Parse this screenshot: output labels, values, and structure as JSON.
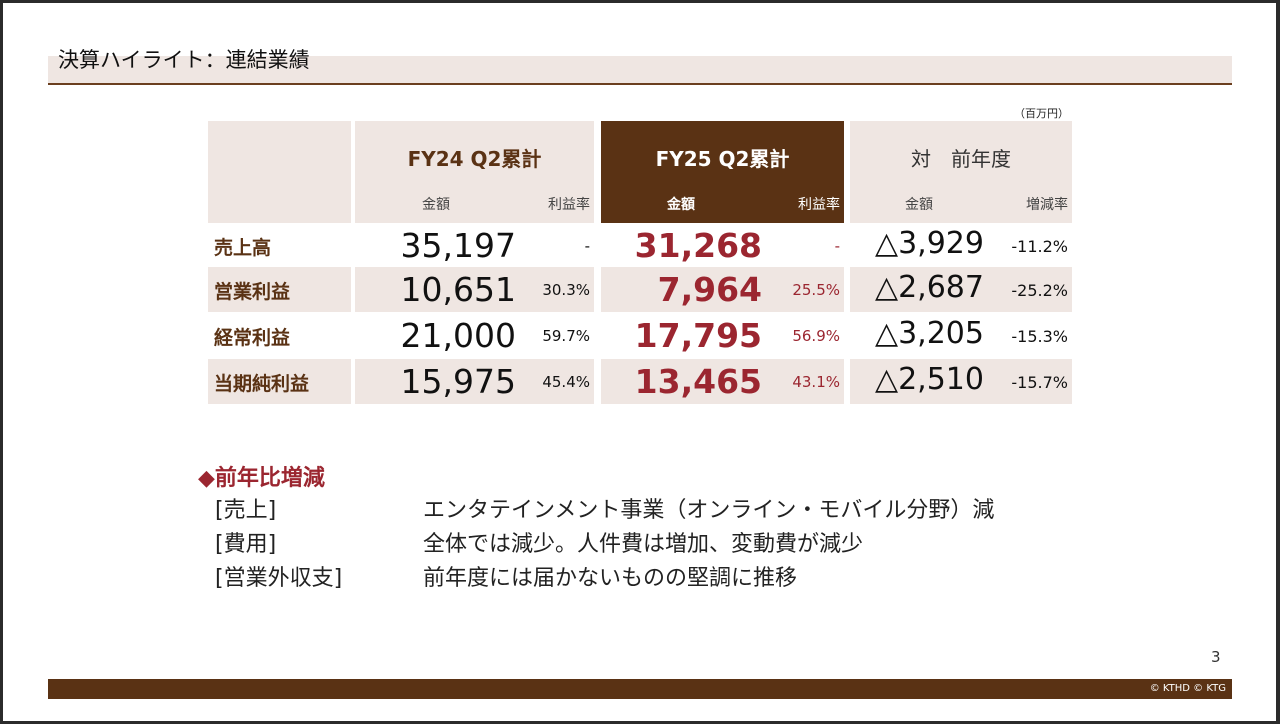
{
  "title": "決算ハイライト：連結業績",
  "unit": "（百万円）",
  "columns": [
    {
      "title": "FY24 Q2累計",
      "sub1": "金額",
      "sub2": "利益率"
    },
    {
      "title": "FY25 Q2累計",
      "sub1": "金額",
      "sub2": "利益率"
    },
    {
      "title": "対　前年度",
      "sub1": "金額",
      "sub2": "増減率"
    }
  ],
  "rows": [
    {
      "label": "売上高",
      "fy24": "35,197",
      "fy24_rate": "-",
      "fy25": "31,268",
      "fy25_rate": "-",
      "diff": "△3,929",
      "diff_rate": "-11.2%"
    },
    {
      "label": "営業利益",
      "fy24": "10,651",
      "fy24_rate": "30.3%",
      "fy25": "7,964",
      "fy25_rate": "25.5%",
      "diff": "△2,687",
      "diff_rate": "-25.2%"
    },
    {
      "label": "経常利益",
      "fy24": "21,000",
      "fy24_rate": "59.7%",
      "fy25": "17,795",
      "fy25_rate": "56.9%",
      "diff": "△3,205",
      "diff_rate": "-15.3%"
    },
    {
      "label": "当期純利益",
      "fy24": "15,975",
      "fy24_rate": "45.4%",
      "fy25": "13,465",
      "fy25_rate": "43.1%",
      "diff": "△2,510",
      "diff_rate": "-15.7%"
    }
  ],
  "notes": {
    "heading": "◆前年比増減",
    "items": [
      {
        "key": "[売上]",
        "text": "エンタテインメント事業（オンライン・モバイル分野）減"
      },
      {
        "key": "[費用]",
        "text": "全体では減少。人件費は増加、変動費が減少"
      },
      {
        "key": "[営業外収支]",
        "text": "前年度には届かないものの堅調に推移"
      }
    ]
  },
  "page_number": "3",
  "copyright": "© KTHD © KTG"
}
